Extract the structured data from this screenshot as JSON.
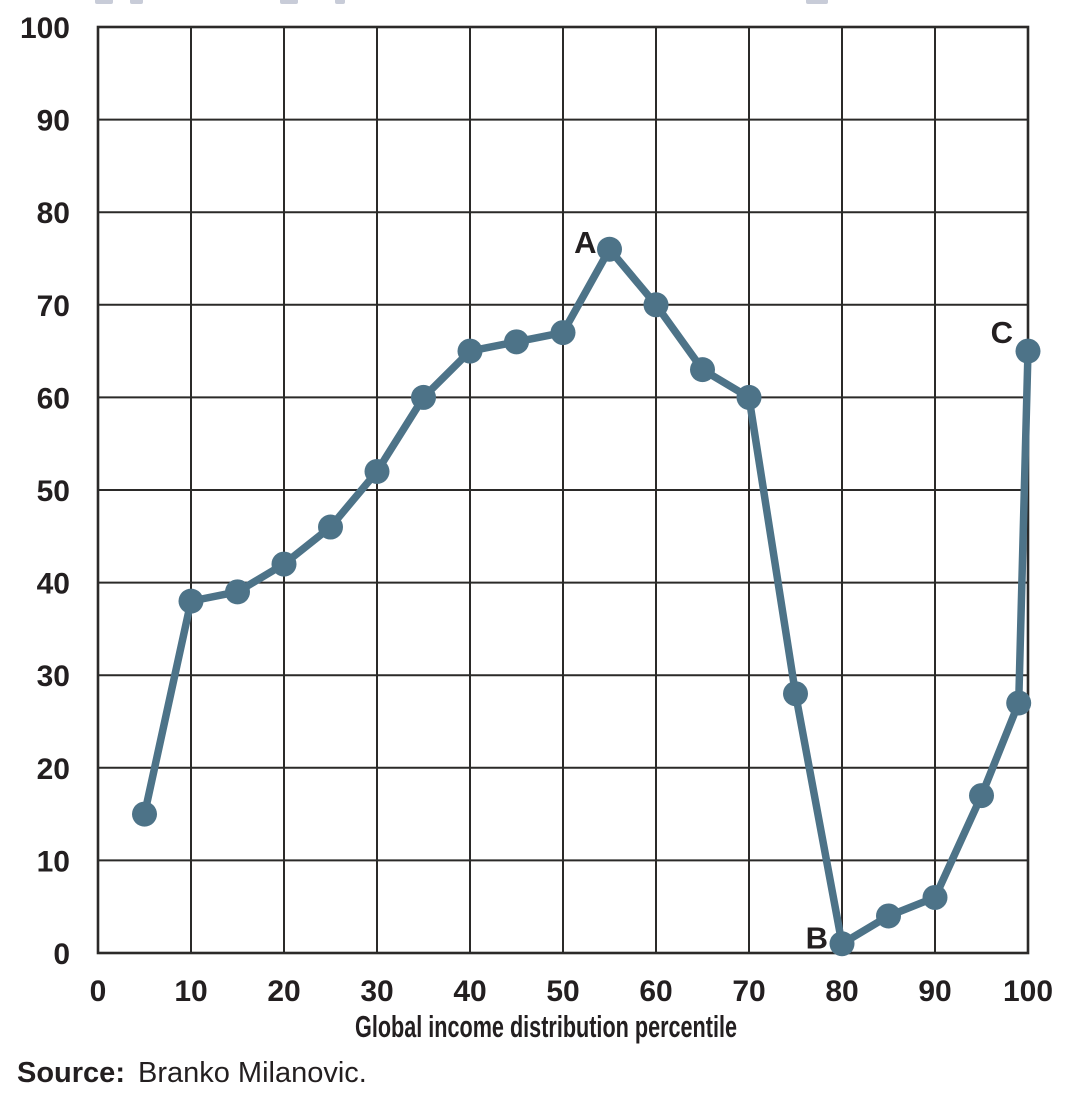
{
  "figure": {
    "source_label": "Source:",
    "source_text": "Branko Milanovic."
  },
  "chart_data": {
    "type": "line",
    "title": "",
    "xlabel": "Global income distribution percentile",
    "ylabel": "",
    "xlim": [
      0,
      100
    ],
    "ylim": [
      0,
      100
    ],
    "xticks": [
      0,
      10,
      20,
      30,
      40,
      50,
      60,
      70,
      80,
      90,
      100
    ],
    "yticks": [
      0,
      10,
      20,
      30,
      40,
      50,
      60,
      70,
      80,
      90,
      100
    ],
    "grid": true,
    "legend": false,
    "series": [
      {
        "x": [
          5,
          10,
          15,
          20,
          25,
          30,
          35,
          40,
          45,
          50,
          55,
          60,
          65,
          70,
          75,
          80,
          85,
          90,
          95,
          99,
          100
        ],
        "y": [
          15,
          38,
          39,
          42,
          46,
          52,
          60,
          65,
          66,
          67,
          76,
          70,
          63,
          60,
          28,
          1,
          4,
          6,
          17,
          27,
          65
        ],
        "color": "#4d7388",
        "marker": "circle"
      }
    ],
    "annotations": [
      {
        "label": "A",
        "x": 55,
        "y": 76
      },
      {
        "label": "B",
        "x": 80,
        "y": 1
      },
      {
        "label": "C",
        "x": 100,
        "y": 65
      }
    ],
    "colors": {
      "grid": "#2b2a29",
      "frame": "#2b2a29",
      "text": "#231f20",
      "line": "#4d7388"
    }
  }
}
